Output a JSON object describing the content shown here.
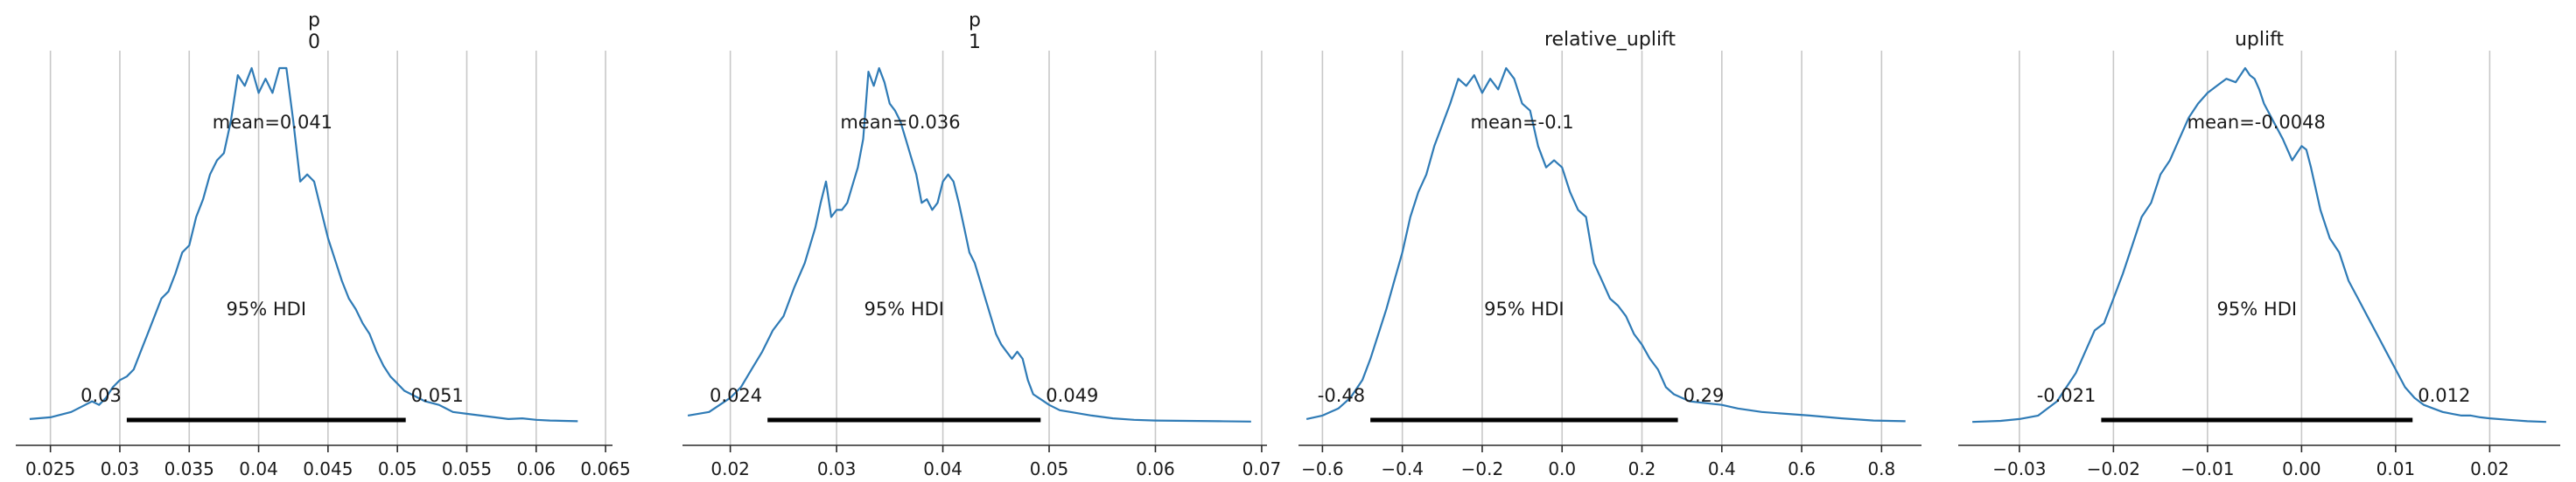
{
  "chart_data": [
    {
      "type": "line",
      "title": "p\n0",
      "title_lines": [
        "p",
        "0"
      ],
      "xlim": [
        0.0225,
        0.0655
      ],
      "ticks": [
        0.025,
        0.03,
        0.035,
        0.04,
        0.045,
        0.05,
        0.055,
        0.06,
        0.065
      ],
      "tick_labels": [
        "0.025",
        "0.03",
        "0.035",
        "0.04",
        "0.045",
        "0.05",
        "0.055",
        "0.06",
        "0.065"
      ],
      "mean_label": "mean=0.041",
      "mean_x": 0.041,
      "hdi_label": "95% HDI",
      "hdi_low": 0.0305,
      "hdi_high": 0.0506,
      "hdi_low_label": "0.03",
      "hdi_high_label": "0.051",
      "grid": true,
      "curve": {
        "x": [
          0.0235,
          0.025,
          0.0265,
          0.0275,
          0.028,
          0.0285,
          0.029,
          0.0295,
          0.03,
          0.0305,
          0.031,
          0.0315,
          0.032,
          0.0325,
          0.033,
          0.0335,
          0.034,
          0.0345,
          0.035,
          0.0355,
          0.036,
          0.0365,
          0.037,
          0.0375,
          0.038,
          0.0385,
          0.039,
          0.0395,
          0.04,
          0.0405,
          0.041,
          0.0415,
          0.042,
          0.0425,
          0.043,
          0.0435,
          0.044,
          0.0445,
          0.045,
          0.0455,
          0.046,
          0.0465,
          0.047,
          0.0475,
          0.048,
          0.0485,
          0.049,
          0.0495,
          0.05,
          0.0505,
          0.051,
          0.0515,
          0.052,
          0.053,
          0.054,
          0.055,
          0.056,
          0.057,
          0.058,
          0.059,
          0.06,
          0.061,
          0.062,
          0.063
        ],
        "y": [
          0.01,
          0.015,
          0.03,
          0.05,
          0.06,
          0.05,
          0.07,
          0.1,
          0.12,
          0.13,
          0.15,
          0.2,
          0.25,
          0.3,
          0.35,
          0.37,
          0.42,
          0.48,
          0.5,
          0.58,
          0.63,
          0.7,
          0.74,
          0.76,
          0.85,
          0.98,
          0.95,
          1.0,
          0.93,
          0.97,
          0.93,
          1.0,
          1.0,
          0.85,
          0.68,
          0.7,
          0.68,
          0.6,
          0.52,
          0.46,
          0.4,
          0.35,
          0.32,
          0.28,
          0.25,
          0.2,
          0.16,
          0.13,
          0.11,
          0.09,
          0.08,
          0.07,
          0.06,
          0.05,
          0.03,
          0.025,
          0.02,
          0.015,
          0.01,
          0.012,
          0.008,
          0.006,
          0.005,
          0.004
        ]
      }
    },
    {
      "type": "line",
      "title": "p\n1",
      "title_lines": [
        "p",
        "1"
      ],
      "xlim": [
        0.0155,
        0.0705
      ],
      "ticks": [
        0.02,
        0.03,
        0.04,
        0.05,
        0.06,
        0.07
      ],
      "tick_labels": [
        "0.02",
        "0.03",
        "0.04",
        "0.05",
        "0.06",
        "0.07"
      ],
      "mean_label": "mean=0.036",
      "mean_x": 0.036,
      "hdi_label": "95% HDI",
      "hdi_low": 0.0235,
      "hdi_high": 0.0492,
      "hdi_low_label": "0.024",
      "hdi_high_label": "0.049",
      "grid": true,
      "curve": {
        "x": [
          0.016,
          0.018,
          0.02,
          0.021,
          0.022,
          0.023,
          0.024,
          0.025,
          0.026,
          0.027,
          0.028,
          0.0285,
          0.029,
          0.0295,
          0.03,
          0.0305,
          0.031,
          0.0315,
          0.032,
          0.0325,
          0.033,
          0.0335,
          0.034,
          0.0345,
          0.035,
          0.0355,
          0.036,
          0.0365,
          0.037,
          0.0375,
          0.038,
          0.0385,
          0.039,
          0.0395,
          0.04,
          0.0405,
          0.041,
          0.0415,
          0.042,
          0.0425,
          0.043,
          0.0435,
          0.044,
          0.0445,
          0.045,
          0.0455,
          0.046,
          0.0465,
          0.047,
          0.0475,
          0.048,
          0.0485,
          0.049,
          0.0495,
          0.05,
          0.051,
          0.052,
          0.054,
          0.056,
          0.058,
          0.06,
          0.063,
          0.066,
          0.069
        ],
        "y": [
          0.02,
          0.03,
          0.07,
          0.1,
          0.15,
          0.2,
          0.26,
          0.3,
          0.38,
          0.45,
          0.55,
          0.62,
          0.68,
          0.58,
          0.6,
          0.6,
          0.62,
          0.67,
          0.72,
          0.8,
          0.99,
          0.95,
          1.0,
          0.96,
          0.9,
          0.88,
          0.85,
          0.8,
          0.75,
          0.7,
          0.62,
          0.63,
          0.6,
          0.62,
          0.68,
          0.7,
          0.68,
          0.62,
          0.55,
          0.48,
          0.45,
          0.4,
          0.35,
          0.3,
          0.25,
          0.22,
          0.2,
          0.18,
          0.2,
          0.18,
          0.12,
          0.08,
          0.07,
          0.06,
          0.05,
          0.035,
          0.03,
          0.02,
          0.012,
          0.008,
          0.006,
          0.005,
          0.004,
          0.003
        ]
      }
    },
    {
      "type": "line",
      "title": "relative_uplift",
      "title_lines": [
        "relative_uplift"
      ],
      "xlim": [
        -0.66,
        0.9
      ],
      "ticks": [
        -0.6,
        -0.4,
        -0.2,
        0.0,
        0.2,
        0.4,
        0.6,
        0.8
      ],
      "tick_labels": [
        "−0.6",
        "−0.4",
        "−0.2",
        "0.0",
        "0.2",
        "0.4",
        "0.6",
        "0.8"
      ],
      "mean_label": "mean=-0.1",
      "mean_x": -0.1,
      "hdi_label": "95% HDI",
      "hdi_low": -0.48,
      "hdi_high": 0.29,
      "hdi_low_label": "-0.48",
      "hdi_high_label": "0.29",
      "grid": true,
      "curve": {
        "x": [
          -0.64,
          -0.6,
          -0.56,
          -0.53,
          -0.5,
          -0.48,
          -0.46,
          -0.44,
          -0.42,
          -0.4,
          -0.38,
          -0.36,
          -0.34,
          -0.32,
          -0.3,
          -0.28,
          -0.26,
          -0.24,
          -0.22,
          -0.2,
          -0.18,
          -0.16,
          -0.14,
          -0.12,
          -0.1,
          -0.08,
          -0.06,
          -0.04,
          -0.02,
          0.0,
          0.02,
          0.04,
          0.06,
          0.08,
          0.1,
          0.12,
          0.14,
          0.16,
          0.18,
          0.2,
          0.22,
          0.24,
          0.26,
          0.28,
          0.3,
          0.32,
          0.36,
          0.4,
          0.44,
          0.5,
          0.56,
          0.62,
          0.7,
          0.78,
          0.86
        ],
        "y": [
          0.01,
          0.02,
          0.04,
          0.07,
          0.12,
          0.18,
          0.25,
          0.32,
          0.4,
          0.48,
          0.58,
          0.65,
          0.7,
          0.78,
          0.84,
          0.9,
          0.97,
          0.95,
          0.98,
          0.93,
          0.97,
          0.94,
          1.0,
          0.97,
          0.9,
          0.88,
          0.78,
          0.72,
          0.74,
          0.72,
          0.65,
          0.6,
          0.58,
          0.45,
          0.4,
          0.35,
          0.33,
          0.3,
          0.25,
          0.22,
          0.18,
          0.15,
          0.1,
          0.08,
          0.07,
          0.06,
          0.055,
          0.05,
          0.04,
          0.03,
          0.025,
          0.02,
          0.012,
          0.006,
          0.004
        ]
      }
    },
    {
      "type": "line",
      "title": "uplift",
      "title_lines": [
        "uplift"
      ],
      "xlim": [
        -0.0365,
        0.0275
      ],
      "ticks": [
        -0.03,
        -0.02,
        -0.01,
        0.0,
        0.01,
        0.02
      ],
      "tick_labels": [
        "−0.03",
        "−0.02",
        "−0.01",
        "0.00",
        "0.01",
        "0.02"
      ],
      "mean_label": "mean=-0.0048",
      "mean_x": -0.0048,
      "hdi_label": "95% HDI",
      "hdi_low": -0.0213,
      "hdi_high": 0.0118,
      "hdi_low_label": "-0.021",
      "hdi_high_label": "0.012",
      "grid": true,
      "curve": {
        "x": [
          -0.035,
          -0.032,
          -0.03,
          -0.028,
          -0.027,
          -0.026,
          -0.025,
          -0.024,
          -0.023,
          -0.022,
          -0.021,
          -0.02,
          -0.019,
          -0.018,
          -0.017,
          -0.016,
          -0.015,
          -0.014,
          -0.013,
          -0.012,
          -0.011,
          -0.01,
          -0.009,
          -0.008,
          -0.007,
          -0.006,
          -0.0055,
          -0.005,
          -0.0045,
          -0.004,
          -0.003,
          -0.002,
          -0.001,
          0.0,
          0.0005,
          0.001,
          0.002,
          0.003,
          0.004,
          0.005,
          0.006,
          0.007,
          0.008,
          0.009,
          0.01,
          0.011,
          0.012,
          0.013,
          0.014,
          0.015,
          0.016,
          0.017,
          0.018,
          0.019,
          0.02,
          0.022,
          0.024,
          0.026
        ],
        "y": [
          0.002,
          0.005,
          0.01,
          0.02,
          0.04,
          0.06,
          0.1,
          0.14,
          0.2,
          0.26,
          0.28,
          0.35,
          0.42,
          0.5,
          0.58,
          0.62,
          0.7,
          0.74,
          0.8,
          0.86,
          0.9,
          0.93,
          0.95,
          0.97,
          0.96,
          1.0,
          0.98,
          0.97,
          0.94,
          0.9,
          0.85,
          0.8,
          0.74,
          0.78,
          0.77,
          0.72,
          0.6,
          0.52,
          0.48,
          0.4,
          0.35,
          0.3,
          0.25,
          0.2,
          0.15,
          0.1,
          0.07,
          0.05,
          0.04,
          0.03,
          0.025,
          0.02,
          0.02,
          0.015,
          0.012,
          0.008,
          0.004,
          0.002
        ]
      }
    }
  ]
}
